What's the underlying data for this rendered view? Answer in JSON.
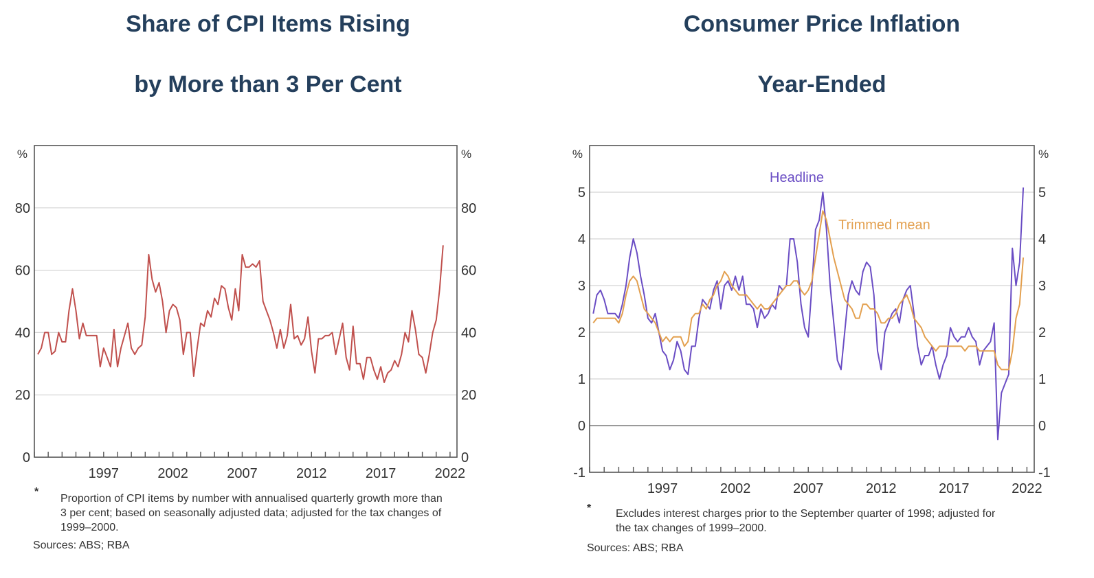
{
  "left": {
    "title_line1": "Share of CPI Items Rising",
    "title_line2": "by More than 3 Per Cent",
    "note_marker": "*",
    "note": "Proportion of CPI items by number with annualised quarterly growth more than 3 per cent; based on seasonally adjusted data; adjusted for the tax changes of 1999–2000.",
    "sources": "Sources: ABS; RBA"
  },
  "right": {
    "title_line1": "Consumer Price Inflation",
    "title_line2": "Year-Ended",
    "note_marker": "*",
    "note": "Excludes interest charges prior to the September quarter of 1998; adjusted for the tax changes of 1999–2000.",
    "sources": "Sources: ABS; RBA"
  },
  "chart_data": [
    {
      "type": "line",
      "title": "Share of CPI Items Rising by More than 3 Per Cent",
      "unit_label": "%",
      "ylim": [
        0,
        100
      ],
      "yticks": [
        0,
        20,
        40,
        60,
        80
      ],
      "xlim": [
        1992.0,
        2022.5
      ],
      "xtick_labels": [
        "1997",
        "2002",
        "2007",
        "2012",
        "2017",
        "2022"
      ],
      "xtick_values": [
        1997,
        2002,
        2007,
        2012,
        2017,
        2022
      ],
      "grid": true,
      "color": "#c0504d",
      "series": [
        {
          "x_start": 1992.25,
          "x_step": 0.25,
          "values": [
            33,
            35,
            40,
            40,
            33,
            34,
            40,
            37,
            37,
            47,
            54,
            47,
            38,
            43,
            39,
            39,
            39,
            39,
            29,
            35,
            32,
            29,
            41,
            29,
            35,
            39,
            43,
            35,
            33,
            35,
            36,
            45,
            65,
            57,
            53,
            56,
            50,
            40,
            47,
            49,
            48,
            44,
            33,
            40,
            40,
            26,
            35,
            43,
            42,
            47,
            45,
            51,
            49,
            55,
            54,
            48,
            44,
            54,
            47,
            65,
            61,
            61,
            62,
            61,
            63,
            50,
            47,
            44,
            40,
            35,
            41,
            35,
            39,
            49,
            38,
            39,
            36,
            38,
            45,
            34,
            27,
            38,
            38,
            39,
            39,
            40,
            33,
            38,
            43,
            32,
            28,
            42,
            30,
            30,
            25,
            32,
            32,
            28,
            25,
            29,
            24,
            27,
            28,
            31,
            29,
            33,
            40,
            37,
            47,
            41,
            33,
            32,
            27,
            33,
            40,
            44,
            54,
            68
          ]
        }
      ]
    },
    {
      "type": "line",
      "title": "Consumer Price Inflation Year-Ended",
      "unit_label": "%",
      "ylim": [
        -1,
        6
      ],
      "yticks": [
        -1,
        0,
        1,
        2,
        3,
        4,
        5
      ],
      "xlim": [
        1992.0,
        2022.5
      ],
      "xtick_labels": [
        "1997",
        "2002",
        "2007",
        "2012",
        "2017",
        "2022"
      ],
      "xtick_values": [
        1997,
        2002,
        2007,
        2012,
        2017,
        2022
      ],
      "grid": true,
      "series": [
        {
          "name": "Headline",
          "color": "#6a4dc4",
          "x_start": 1992.25,
          "x_step": 0.25,
          "values": [
            2.4,
            2.8,
            2.9,
            2.7,
            2.4,
            2.4,
            2.4,
            2.3,
            2.6,
            3.0,
            3.6,
            4.0,
            3.7,
            3.2,
            2.8,
            2.3,
            2.2,
            2.4,
            2.0,
            1.6,
            1.5,
            1.2,
            1.4,
            1.8,
            1.6,
            1.2,
            1.1,
            1.7,
            1.7,
            2.3,
            2.7,
            2.6,
            2.5,
            2.9,
            3.1,
            2.5,
            3.0,
            3.1,
            2.9,
            3.2,
            2.9,
            3.2,
            2.6,
            2.6,
            2.5,
            2.1,
            2.5,
            2.3,
            2.4,
            2.6,
            2.5,
            3.0,
            2.9,
            3.0,
            4.0,
            4.0,
            3.5,
            2.6,
            2.1,
            1.9,
            3.0,
            4.2,
            4.4,
            5.0,
            4.2,
            3.0,
            2.2,
            1.4,
            1.2,
            2.0,
            2.8,
            3.1,
            2.9,
            2.8,
            3.3,
            3.5,
            3.4,
            2.8,
            1.6,
            1.2,
            2.0,
            2.2,
            2.4,
            2.5,
            2.2,
            2.7,
            2.9,
            3.0,
            2.4,
            1.7,
            1.3,
            1.5,
            1.5,
            1.7,
            1.3,
            1.0,
            1.3,
            1.5,
            2.1,
            1.9,
            1.8,
            1.9,
            1.9,
            2.1,
            1.9,
            1.8,
            1.3,
            1.6,
            1.7,
            1.8,
            2.2,
            -0.3,
            0.7,
            0.9,
            1.1,
            3.8,
            3.0,
            3.5,
            5.1
          ]
        },
        {
          "name": "Trimmed mean",
          "color": "#e3a04f",
          "x_start": 1992.25,
          "x_step": 0.25,
          "values": [
            2.2,
            2.3,
            2.3,
            2.3,
            2.3,
            2.3,
            2.3,
            2.2,
            2.4,
            2.8,
            3.1,
            3.2,
            3.1,
            2.8,
            2.5,
            2.4,
            2.3,
            2.2,
            2.0,
            1.8,
            1.9,
            1.8,
            1.9,
            1.9,
            1.9,
            1.7,
            1.8,
            2.3,
            2.4,
            2.4,
            2.6,
            2.5,
            2.7,
            2.8,
            3.0,
            3.1,
            3.3,
            3.2,
            3.0,
            2.9,
            2.8,
            2.8,
            2.8,
            2.7,
            2.6,
            2.5,
            2.6,
            2.5,
            2.5,
            2.6,
            2.7,
            2.8,
            2.9,
            3.0,
            3.0,
            3.1,
            3.1,
            2.9,
            2.8,
            2.9,
            3.1,
            3.6,
            4.1,
            4.6,
            4.4,
            4.0,
            3.6,
            3.3,
            3.0,
            2.7,
            2.6,
            2.5,
            2.3,
            2.3,
            2.6,
            2.6,
            2.5,
            2.5,
            2.4,
            2.2,
            2.2,
            2.3,
            2.3,
            2.4,
            2.6,
            2.7,
            2.8,
            2.6,
            2.3,
            2.2,
            2.1,
            1.9,
            1.8,
            1.7,
            1.6,
            1.7,
            1.7,
            1.7,
            1.7,
            1.7,
            1.7,
            1.7,
            1.6,
            1.7,
            1.7,
            1.7,
            1.6,
            1.6,
            1.6,
            1.6,
            1.6,
            1.3,
            1.2,
            1.2,
            1.2,
            1.6,
            2.3,
            2.6,
            3.6
          ]
        }
      ]
    }
  ]
}
